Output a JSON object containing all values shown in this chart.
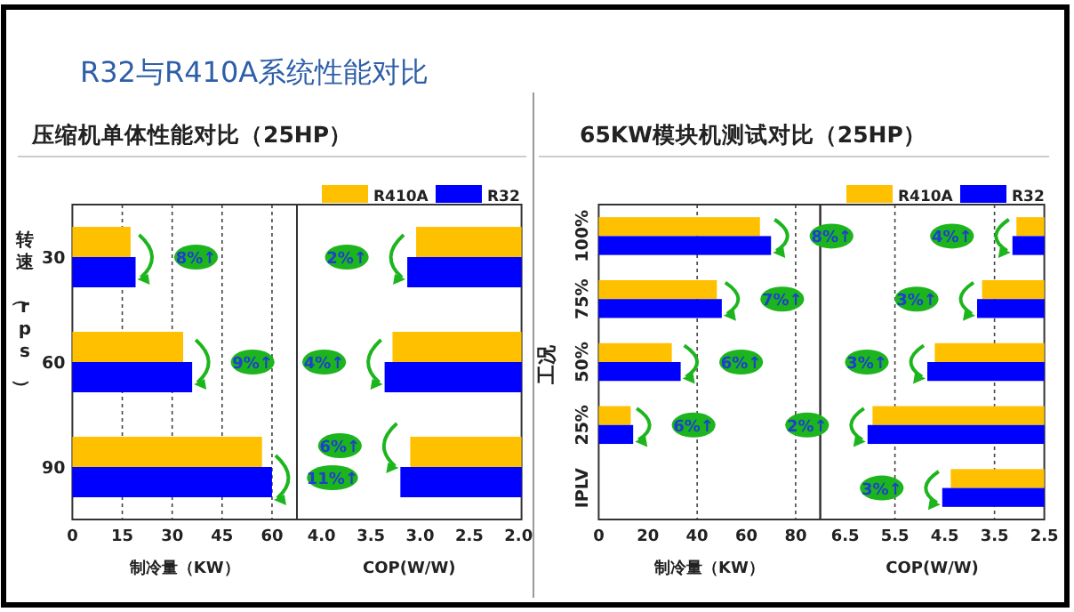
{
  "chart_data": [
    {
      "type": "bar",
      "orientation": "horizontal",
      "title": "R32与R410A系统性能对比",
      "subtitle": "压缩机单体性能对比（25HP）",
      "ylabel": "转速（rps）",
      "xlabel": "制冷量（KW）",
      "categories": [
        "30",
        "60",
        "90"
      ],
      "series": [
        {
          "name": "R410A",
          "color": "#ffc000",
          "values": [
            17.5,
            33.3,
            57
          ]
        },
        {
          "name": "R32",
          "color": "#0000ff",
          "values": [
            19,
            36,
            60
          ]
        }
      ],
      "xlim": [
        0,
        67.5
      ],
      "xticks": [
        0,
        15,
        30,
        45,
        60
      ],
      "grid": "x",
      "legend": "top",
      "annotations": [
        {
          "text": "8%↑",
          "y": "30"
        },
        {
          "text": "9%↑",
          "y": "60"
        },
        "11%↑"
      ]
    },
    {
      "type": "bar",
      "orientation": "horizontal",
      "xlabel": "COP(W/W)",
      "categories": [
        "30",
        "60",
        "90"
      ],
      "tick_labels": "x",
      "series": [
        {
          "color": "#ffc000",
          "values": [
            3.04,
            3.28,
            3.1
          ]
        },
        {
          "color": "#0000ff",
          "values": [
            3.13,
            3.36,
            3.2
          ]
        }
      ],
      "xlim": [
        4.25,
        1.97
      ],
      "xticks": [
        {
          "value": 4,
          "label": "4.0"
        },
        3.5,
        {
          "value": 3,
          "label": "3.0"
        },
        2.5,
        {
          "value": 2,
          "label": "2.0"
        }
      ],
      "annotations": [
        {
          "text": "2%↑",
          "y": "30"
        },
        {
          "text": "4%↑",
          "y": "60"
        },
        "6%↑"
      ]
    },
    {
      "type": "bar",
      "orientation": "horizontal",
      "title": "65KW模块机测试对比（25HP）",
      "ylabel": "工况",
      "xlabel": "制冷量（KW）",
      "categories": [
        "100%",
        "75%",
        "50%",
        "25%",
        "IPLV"
      ],
      "series": [
        {
          "name": "R410A",
          "color": "#ffc000",
          "values": [
            65.5,
            48,
            29.7,
            13,
            null
          ]
        },
        {
          "name": "R32",
          "color": "#0000ff",
          "values": [
            70,
            50,
            33.3,
            14,
            null
          ]
        }
      ],
      "xlim": [
        0,
        90
      ],
      "xticks": [
        0,
        20,
        40,
        60,
        80
      ],
      "legend": "top",
      "ref_lines": [
        {
          "axis": "x",
          "value": 40
        },
        {
          "axis": "x",
          "value": 80
        }
      ],
      "annotations": [
        {
          "text": "8%↑",
          "y": "100%"
        },
        {
          "text": "7%↑",
          "y": "75%"
        },
        {
          "text": "6%↑",
          "y": "50%"
        },
        {
          "text": "6%↑",
          "y": "25%"
        }
      ]
    },
    {
      "type": "bar",
      "orientation": "horizontal",
      "xlabel": "COP(W/W)",
      "categories": [
        "100%",
        "75%",
        "50%",
        "25%",
        "IPLV"
      ],
      "tick_labels": "x",
      "series": [
        {
          "color": "#ffc000",
          "values": [
            3.06,
            3.75,
            4.7,
            5.95,
            4.38
          ]
        },
        {
          "color": "#0000ff",
          "values": [
            3.14,
            3.85,
            4.85,
            6.05,
            4.55
          ]
        }
      ],
      "xlim": [
        7.0,
        2.5
      ],
      "xticks": [
        6.5,
        5.5,
        4.5,
        3.5,
        2.5
      ],
      "ref_lines": [
        {
          "axis": "x",
          "value": 5.5
        },
        {
          "axis": "x",
          "value": 3.5
        }
      ],
      "annotations": [
        {
          "text": "4%↑",
          "y": "100%"
        },
        {
          "text": "3%↑",
          "y": "75%"
        },
        {
          "text": "3%↑",
          "y": "50%"
        },
        {
          "text": "2%↑",
          "y": "25%"
        },
        {
          "text": "3%↑",
          "y": "IPLV"
        }
      ]
    }
  ]
}
